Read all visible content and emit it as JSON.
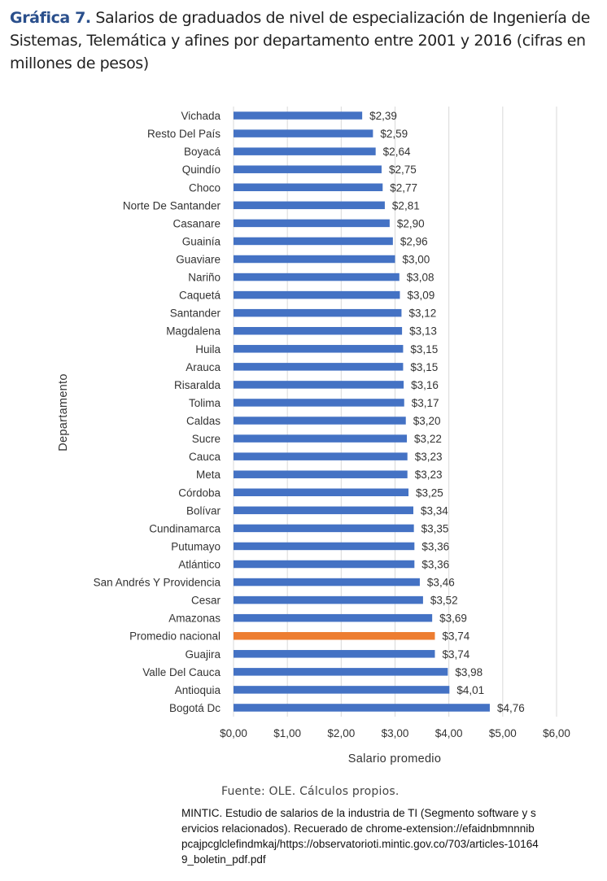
{
  "header": {
    "figure_label": "Gráfica 7.",
    "title_text": "Salarios de graduados de nivel de especialización de Ingeniería de Sistemas, Telemática y afines por departamento entre 2001 y 2016 (cifras en millones de pesos)"
  },
  "footer": {
    "source": "Fuente: OLE. Cálculos propios.",
    "citation": "MINTIC. Estudio de salarios de la industria de TI  (Segmento software y servicios relacionados). Recuerado de chrome-extension://efaidnbmnnnibpcajpcglclefindmkaj/https://observatorioti.mintic.gov.co/703/articles-101649_boletin_pdf.pdf"
  },
  "colors": {
    "bar": "#4472c4",
    "highlight": "#ed7d31",
    "grid": "#d9d9d9"
  },
  "chart_data": {
    "type": "bar",
    "orientation": "horizontal",
    "xlabel": "Salario promedio",
    "ylabel": "Departamento",
    "xlim": [
      0,
      6
    ],
    "x_ticks": [
      "$0,00",
      "$1,00",
      "$2,00",
      "$3,00",
      "$4,00",
      "$5,00",
      "$6,00"
    ],
    "grid": "vertical",
    "categories": [
      "Vichada",
      "Resto Del País",
      "Boyacá",
      "Quindío",
      "Choco",
      "Norte De Santander",
      "Casanare",
      "Guainía",
      "Guaviare",
      "Nariño",
      "Caquetá",
      "Santander",
      "Magdalena",
      "Huila",
      "Arauca",
      "Risaralda",
      "Tolima",
      "Caldas",
      "Sucre",
      "Cauca",
      "Meta",
      "Córdoba",
      "Bolívar",
      "Cundinamarca",
      "Putumayo",
      "Atlántico",
      "San Andrés Y Providencia",
      "Cesar",
      "Amazonas",
      "Promedio nacional",
      "Guajira",
      "Valle Del Cauca",
      "Antioquia",
      "Bogotá Dc"
    ],
    "values": [
      2.39,
      2.59,
      2.64,
      2.75,
      2.77,
      2.81,
      2.9,
      2.96,
      3.0,
      3.08,
      3.09,
      3.12,
      3.13,
      3.15,
      3.15,
      3.16,
      3.17,
      3.2,
      3.22,
      3.23,
      3.23,
      3.25,
      3.34,
      3.35,
      3.36,
      3.36,
      3.46,
      3.52,
      3.69,
      3.74,
      3.74,
      3.98,
      4.01,
      4.76
    ],
    "data_labels": [
      "$2,39",
      "$2,59",
      "$2,64",
      "$2,75",
      "$2,77",
      "$2,81",
      "$2,90",
      "$2,96",
      "$3,00",
      "$3,08",
      "$3,09",
      "$3,12",
      "$3,13",
      "$3,15",
      "$3,15",
      "$3,16",
      "$3,17",
      "$3,20",
      "$3,22",
      "$3,23",
      "$3,23",
      "$3,25",
      "$3,34",
      "$3,35",
      "$3,36",
      "$3,36",
      "$3,46",
      "$3,52",
      "$3,69",
      "$3,74",
      "$3,74",
      "$3,98",
      "$4,01",
      "$4,76"
    ],
    "highlight_category": "Promedio nacional"
  }
}
